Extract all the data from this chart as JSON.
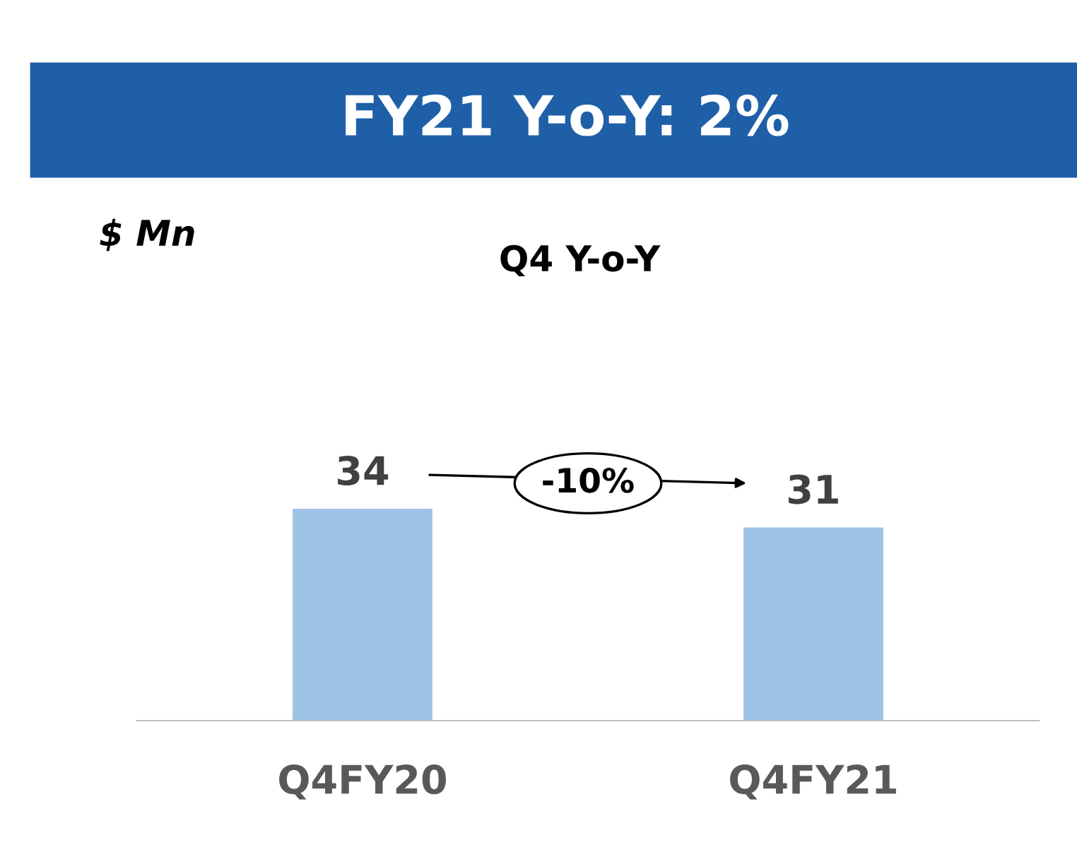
{
  "chart_data": {
    "type": "bar",
    "title": "FY21 Y-o-Y: 2%",
    "subtitle": "Q4 Y-o-Y",
    "categories": [
      "Q4FY20",
      "Q4FY21"
    ],
    "values": [
      34,
      31
    ],
    "color": "#9dc3e6",
    "data_labels": true,
    "grid": false,
    "tick_labels": "x",
    "annotations": [
      "$ Mn",
      "-10%"
    ]
  }
}
